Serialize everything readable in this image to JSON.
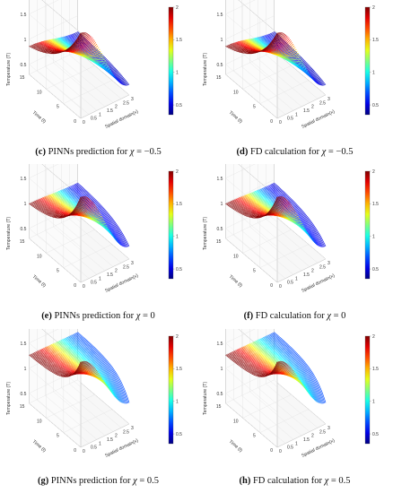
{
  "colorbar": {
    "ticks": [
      "2",
      "1.5",
      "1",
      "0.5"
    ]
  },
  "chart_data": [
    {
      "type": "surface",
      "panel": "c",
      "label": "(c)",
      "caption_pre": "PINNs prediction for ",
      "symbol": "χ",
      "caption_eq": " = ",
      "value": "−0.5",
      "chi": -0.5,
      "xlabel": "Spatial domain(x)",
      "ylabel": "Time (t)",
      "zlabel": "Temperature (T)",
      "xticks": [
        "0",
        "0.5",
        "1",
        "1.5",
        "2",
        "2.5",
        "3"
      ],
      "yticks": [
        "0",
        "5",
        "10",
        "15"
      ],
      "zticks": [
        "0.5",
        "1",
        "1.5",
        "2"
      ],
      "xlim": [
        0,
        3
      ],
      "ylim": [
        0,
        15
      ],
      "zlim": [
        0.3,
        2.0
      ]
    },
    {
      "type": "surface",
      "panel": "d",
      "label": "(d)",
      "caption_pre": "FD calculation for ",
      "symbol": "χ",
      "caption_eq": " = ",
      "value": "−0.5",
      "chi": -0.5,
      "xlabel": "Spatial domain(x)",
      "ylabel": "Time (t)",
      "zlabel": "Temperature (T)",
      "xticks": [
        "0",
        "0.5",
        "1",
        "1.5",
        "2",
        "2.5",
        "3"
      ],
      "yticks": [
        "0",
        "5",
        "10",
        "15"
      ],
      "zticks": [
        "0.5",
        "1",
        "1.5",
        "2"
      ],
      "xlim": [
        0,
        3
      ],
      "ylim": [
        0,
        15
      ],
      "zlim": [
        0.3,
        2.0
      ]
    },
    {
      "type": "surface",
      "panel": "e",
      "label": "(e)",
      "caption_pre": "PINNs prediction for ",
      "symbol": "χ",
      "caption_eq": " = ",
      "value": "0",
      "chi": 0,
      "xlabel": "Spatial domain(x)",
      "ylabel": "Time (t)",
      "zlabel": "Temperature (T)",
      "xticks": [
        "0",
        "0.5",
        "1",
        "1.5",
        "2",
        "2.5",
        "3"
      ],
      "yticks": [
        "0",
        "5",
        "10",
        "15"
      ],
      "zticks": [
        "0.5",
        "1",
        "1.5",
        "2"
      ],
      "xlim": [
        0,
        3
      ],
      "ylim": [
        0,
        15
      ],
      "zlim": [
        0.3,
        2.0
      ]
    },
    {
      "type": "surface",
      "panel": "f",
      "label": "(f)",
      "caption_pre": "FD calculation for ",
      "symbol": "χ",
      "caption_eq": " = ",
      "value": "0",
      "chi": 0,
      "xlabel": "Spatial domain(x)",
      "ylabel": "Time (t)",
      "zlabel": "Temperature (T)",
      "xticks": [
        "0",
        "0.5",
        "1",
        "1.5",
        "2",
        "2.5",
        "3"
      ],
      "yticks": [
        "0",
        "5",
        "10",
        "15"
      ],
      "zticks": [
        "0.5",
        "1",
        "1.5",
        "2"
      ],
      "xlim": [
        0,
        3
      ],
      "ylim": [
        0,
        15
      ],
      "zlim": [
        0.3,
        2.0
      ]
    },
    {
      "type": "surface",
      "panel": "g",
      "label": "(g)",
      "caption_pre": "PINNs prediction for ",
      "symbol": "χ",
      "caption_eq": " = ",
      "value": "0.5",
      "chi": 0.5,
      "xlabel": "Spatial domain(x)",
      "ylabel": "Time (t)",
      "zlabel": "Temperature (T)",
      "xticks": [
        "0",
        "0.5",
        "1",
        "1.5",
        "2",
        "2.5",
        "3"
      ],
      "yticks": [
        "0",
        "5",
        "10",
        "15"
      ],
      "zticks": [
        "0.5",
        "1",
        "1.5",
        "2"
      ],
      "xlim": [
        0,
        3
      ],
      "ylim": [
        0,
        15
      ],
      "zlim": [
        0.3,
        2.0
      ]
    },
    {
      "type": "surface",
      "panel": "h",
      "label": "(h)",
      "caption_pre": "FD calculation for ",
      "symbol": "χ",
      "caption_eq": " = ",
      "value": "0.5",
      "chi": 0.5,
      "xlabel": "Spatial domain(x)",
      "ylabel": "Time (t)",
      "zlabel": "Temperature (T)",
      "xticks": [
        "0",
        "0.5",
        "1",
        "1.5",
        "2",
        "2.5",
        "3"
      ],
      "yticks": [
        "0",
        "5",
        "10",
        "15"
      ],
      "zticks": [
        "0.5",
        "1",
        "1.5",
        "2"
      ],
      "xlim": [
        0,
        3
      ],
      "ylim": [
        0,
        15
      ],
      "zlim": [
        0.3,
        2.0
      ]
    }
  ]
}
